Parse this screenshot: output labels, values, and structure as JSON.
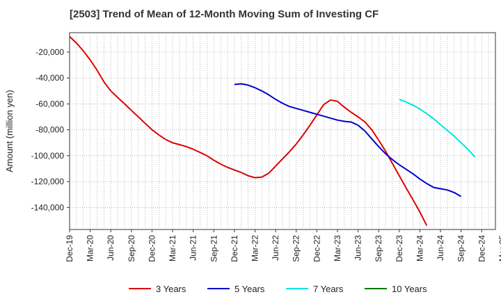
{
  "chart_data": {
    "type": "line",
    "title": "[2503]  Trend of Mean of 12-Month Moving Sum of Investing CF",
    "xlabel": "",
    "ylabel": "Amount (million yen)",
    "ylim": [
      -157000,
      -5000
    ],
    "yticks": [
      -140000,
      -120000,
      -100000,
      -80000,
      -60000,
      -40000,
      -20000
    ],
    "ytick_labels": [
      "-140,000",
      "-120,000",
      "-100,000",
      "-80,000",
      "-60,000",
      "-40,000",
      "-20,000"
    ],
    "x_months_span": 62,
    "xticks": [
      {
        "label": "Dec-19",
        "m": 0
      },
      {
        "label": "Mar-20",
        "m": 3
      },
      {
        "label": "Jun-20",
        "m": 6
      },
      {
        "label": "Sep-20",
        "m": 9
      },
      {
        "label": "Dec-20",
        "m": 12
      },
      {
        "label": "Mar-21",
        "m": 15
      },
      {
        "label": "Jun-21",
        "m": 18
      },
      {
        "label": "Sep-21",
        "m": 21
      },
      {
        "label": "Dec-21",
        "m": 24
      },
      {
        "label": "Mar-22",
        "m": 27
      },
      {
        "label": "Jun-22",
        "m": 30
      },
      {
        "label": "Sep-22",
        "m": 33
      },
      {
        "label": "Dec-22",
        "m": 36
      },
      {
        "label": "Mar-23",
        "m": 39
      },
      {
        "label": "Jun-23",
        "m": 42
      },
      {
        "label": "Sep-23",
        "m": 45
      },
      {
        "label": "Dec-23",
        "m": 48
      },
      {
        "label": "Mar-24",
        "m": 51
      },
      {
        "label": "Jun-24",
        "m": 54
      },
      {
        "label": "Sep-24",
        "m": 57
      },
      {
        "label": "Dec-24",
        "m": 60
      },
      {
        "label": "Mar-25",
        "m": 63
      }
    ],
    "series": [
      {
        "name": "3 Years",
        "color": "#dd0000",
        "points": [
          [
            0,
            -8000
          ],
          [
            1,
            -13000
          ],
          [
            2,
            -19000
          ],
          [
            3,
            -26000
          ],
          [
            4,
            -34000
          ],
          [
            5,
            -43000
          ],
          [
            6,
            -50000
          ],
          [
            7,
            -55000
          ],
          [
            8,
            -60000
          ],
          [
            9,
            -65000
          ],
          [
            10,
            -70000
          ],
          [
            11,
            -75000
          ],
          [
            12,
            -80000
          ],
          [
            13,
            -84000
          ],
          [
            14,
            -87500
          ],
          [
            15,
            -90000
          ],
          [
            16,
            -91500
          ],
          [
            17,
            -93000
          ],
          [
            18,
            -95000
          ],
          [
            19,
            -97500
          ],
          [
            20,
            -100000
          ],
          [
            21,
            -103500
          ],
          [
            22,
            -106500
          ],
          [
            23,
            -109000
          ],
          [
            24,
            -111000
          ],
          [
            25,
            -113000
          ],
          [
            26,
            -115500
          ],
          [
            27,
            -117000
          ],
          [
            28,
            -116500
          ],
          [
            29,
            -113500
          ],
          [
            30,
            -108000
          ],
          [
            31,
            -102500
          ],
          [
            32,
            -97000
          ],
          [
            33,
            -91000
          ],
          [
            34,
            -84000
          ],
          [
            35,
            -76500
          ],
          [
            36,
            -68500
          ],
          [
            37,
            -60500
          ],
          [
            38,
            -57000
          ],
          [
            39,
            -58000
          ],
          [
            40,
            -62500
          ],
          [
            41,
            -66500
          ],
          [
            42,
            -70000
          ],
          [
            43,
            -74000
          ],
          [
            44,
            -80000
          ],
          [
            45,
            -88000
          ],
          [
            46,
            -96500
          ],
          [
            47,
            -106000
          ],
          [
            48,
            -115500
          ],
          [
            49,
            -125000
          ],
          [
            50,
            -134000
          ],
          [
            51,
            -143500
          ],
          [
            52,
            -154000
          ]
        ]
      },
      {
        "name": "5 Years",
        "color": "#0000cc",
        "points": [
          [
            24,
            -45000
          ],
          [
            25,
            -44500
          ],
          [
            26,
            -45500
          ],
          [
            27,
            -47500
          ],
          [
            28,
            -50000
          ],
          [
            29,
            -53000
          ],
          [
            30,
            -56500
          ],
          [
            31,
            -59500
          ],
          [
            32,
            -62000
          ],
          [
            33,
            -63500
          ],
          [
            34,
            -65000
          ],
          [
            35,
            -66500
          ],
          [
            36,
            -68000
          ],
          [
            37,
            -69500
          ],
          [
            38,
            -71000
          ],
          [
            39,
            -72500
          ],
          [
            40,
            -73500
          ],
          [
            41,
            -74000
          ],
          [
            42,
            -76500
          ],
          [
            43,
            -81000
          ],
          [
            44,
            -87000
          ],
          [
            45,
            -93000
          ],
          [
            46,
            -98500
          ],
          [
            47,
            -103000
          ],
          [
            48,
            -107000
          ],
          [
            49,
            -110500
          ],
          [
            50,
            -114000
          ],
          [
            51,
            -118000
          ],
          [
            52,
            -121500
          ],
          [
            53,
            -124500
          ],
          [
            54,
            -125500
          ],
          [
            55,
            -126500
          ],
          [
            56,
            -128500
          ],
          [
            57,
            -131500
          ]
        ]
      },
      {
        "name": "7 Years",
        "color": "#00e5e5",
        "points": [
          [
            48,
            -56500
          ],
          [
            49,
            -58500
          ],
          [
            50,
            -61000
          ],
          [
            51,
            -64000
          ],
          [
            52,
            -67500
          ],
          [
            53,
            -71500
          ],
          [
            54,
            -76000
          ],
          [
            55,
            -80500
          ],
          [
            56,
            -85000
          ],
          [
            57,
            -90000
          ],
          [
            58,
            -95000
          ],
          [
            59,
            -101000
          ]
        ]
      },
      {
        "name": "10 Years",
        "color": "#007700",
        "points": []
      }
    ]
  }
}
